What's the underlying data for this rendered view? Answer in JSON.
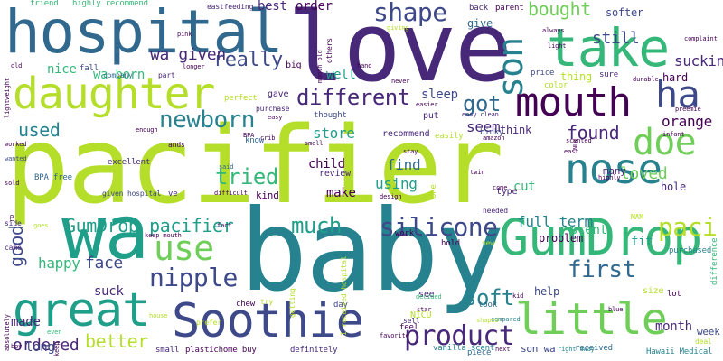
{
  "words": [
    {
      "text": "pacifier",
      "color": "#b5de2b"
    },
    {
      "text": "baby",
      "color": "#26828e"
    },
    {
      "text": "love",
      "color": "#482878"
    },
    {
      "text": "wa",
      "color": "#1f9e89"
    },
    {
      "text": "hospital",
      "color": "#31688e"
    },
    {
      "text": "take",
      "color": "#35b779"
    },
    {
      "text": "daughter",
      "color": "#b5de2b"
    },
    {
      "text": "GumDrop",
      "color": "#35b779"
    },
    {
      "text": "Soothie",
      "color": "#3e4989"
    },
    {
      "text": "little",
      "color": "#6ece58"
    },
    {
      "text": "great",
      "color": "#1f9e89"
    },
    {
      "text": "mouth",
      "color": "#440154"
    },
    {
      "text": "nose",
      "color": "#26828e"
    },
    {
      "text": "doe",
      "color": "#6ece58"
    },
    {
      "text": "use",
      "color": "#6ece58"
    },
    {
      "text": "ha",
      "color": "#3e4989"
    },
    {
      "text": "son",
      "color": "#26828e"
    },
    {
      "text": "product",
      "color": "#482878"
    },
    {
      "text": "shape",
      "color": "#3e4989"
    },
    {
      "text": "silicone",
      "color": "#3e4989"
    },
    {
      "text": "nipple",
      "color": "#3e4989"
    },
    {
      "text": "newborn",
      "color": "#26828e"
    },
    {
      "text": "paci",
      "color": "#b5de2b"
    },
    {
      "text": "much",
      "color": "#1f9e89"
    },
    {
      "text": "first",
      "color": "#31688e"
    },
    {
      "text": "soft",
      "color": "#26828e"
    },
    {
      "text": "really",
      "color": "#3e4989"
    },
    {
      "text": "different",
      "color": "#482878"
    },
    {
      "text": "tried",
      "color": "#35b779"
    },
    {
      "text": "GumDrop pacifier",
      "color": "#1f9e89"
    },
    {
      "text": "bought",
      "color": "#6ece58"
    },
    {
      "text": "got",
      "color": "#31688e"
    },
    {
      "text": "used",
      "color": "#26828e"
    },
    {
      "text": "better",
      "color": "#b5de2b"
    },
    {
      "text": "ordered",
      "color": "#482878"
    },
    {
      "text": "good",
      "color": "#3e4989"
    },
    {
      "text": "face",
      "color": "#3e4989"
    },
    {
      "text": "wa given",
      "color": "#482878"
    },
    {
      "text": "still",
      "color": "#3e4989"
    },
    {
      "text": "loved",
      "color": "#6ece58"
    },
    {
      "text": "found",
      "color": "#482878"
    },
    {
      "text": "happy",
      "color": "#35b779"
    },
    {
      "text": "full term",
      "color": "#26828e"
    },
    {
      "text": "sucking",
      "color": "#482878"
    },
    {
      "text": "orange",
      "color": "#440154"
    },
    {
      "text": "month",
      "color": "#482878"
    },
    {
      "text": "suck",
      "color": "#482878"
    },
    {
      "text": "seem",
      "color": "#482878"
    },
    {
      "text": "store",
      "color": "#1f9e89"
    },
    {
      "text": "using",
      "color": "#1f9e89"
    },
    {
      "text": "find",
      "color": "#31688e"
    },
    {
      "text": "made",
      "color": "#482878"
    },
    {
      "text": "nice",
      "color": "#35b779"
    },
    {
      "text": "wa born",
      "color": "#35b779"
    },
    {
      "text": "sleep",
      "color": "#3e4989"
    },
    {
      "text": "scent",
      "color": "#35b779"
    },
    {
      "text": "cut",
      "color": "#35b779"
    },
    {
      "text": "problem",
      "color": "#440154"
    },
    {
      "text": "fit",
      "color": "#1f9e89"
    },
    {
      "text": "help",
      "color": "#3e4989"
    },
    {
      "text": "long",
      "color": "#3e4989"
    },
    {
      "text": "make",
      "color": "#440154"
    },
    {
      "text": "child",
      "color": "#440154"
    },
    {
      "text": "well",
      "color": "#1f9e89"
    },
    {
      "text": "best",
      "color": "#482878"
    },
    {
      "text": "order",
      "color": "#440154"
    },
    {
      "text": "softer",
      "color": "#3e4989"
    },
    {
      "text": "hard",
      "color": "#440154"
    },
    {
      "text": "hole",
      "color": "#482878"
    },
    {
      "text": "thing",
      "color": "#b5de2b"
    },
    {
      "text": "think",
      "color": "#482878"
    },
    {
      "text": "give",
      "color": "#31688e"
    },
    {
      "text": "gave",
      "color": "#482878"
    },
    {
      "text": "review",
      "color": "#482878"
    },
    {
      "text": "recommend",
      "color": "#482878"
    },
    {
      "text": "son wa",
      "color": "#3e4989"
    },
    {
      "text": "week",
      "color": "#3e4989"
    },
    {
      "text": "piece",
      "color": "#31688e"
    },
    {
      "text": "size",
      "color": "#b5de2b"
    },
    {
      "text": "NICU",
      "color": "#b5de2b"
    },
    {
      "text": "type",
      "color": "#482878"
    },
    {
      "text": "purchased",
      "color": "#26828e"
    },
    {
      "text": "kind",
      "color": "#440154"
    },
    {
      "text": "many",
      "color": "#482878"
    },
    {
      "text": "big",
      "color": "#440154"
    },
    {
      "text": "put",
      "color": "#482878"
    },
    {
      "text": "see",
      "color": "#482878"
    },
    {
      "text": "chew",
      "color": "#440154"
    },
    {
      "text": "Hawaii Medical",
      "color": "#26828e"
    },
    {
      "text": "received",
      "color": "#31688e"
    },
    {
      "text": "plastichome buy",
      "color": "#440154"
    },
    {
      "text": "vanilla scent",
      "color": "#26828e"
    },
    {
      "text": "definitely",
      "color": "#482878"
    },
    {
      "text": "small",
      "color": "#482878"
    },
    {
      "text": "came",
      "color": "#482878"
    },
    {
      "text": "side",
      "color": "#482878"
    },
    {
      "text": "friend",
      "color": "#35b779"
    },
    {
      "text": "highly recommend",
      "color": "#35b779"
    },
    {
      "text": "eastfeeding",
      "color": "#482878"
    },
    {
      "text": "back",
      "color": "#482878"
    },
    {
      "text": "parent",
      "color": "#440154"
    },
    {
      "text": "took",
      "color": "#31688e"
    },
    {
      "text": "work",
      "color": "#440154"
    },
    {
      "text": "hold",
      "color": "#440154"
    },
    {
      "text": "binky",
      "color": "#3e4989"
    },
    {
      "text": "lot",
      "color": "#440154"
    },
    {
      "text": "know",
      "color": "#31688e"
    },
    {
      "text": "thought",
      "color": "#3e4989"
    },
    {
      "text": "price",
      "color": "#3e4989"
    },
    {
      "text": "color",
      "color": "#b5de2b"
    },
    {
      "text": "easily",
      "color": "#b5de2b"
    },
    {
      "text": "excellent",
      "color": "#482878"
    },
    {
      "text": "perfect",
      "color": "#b5de2b"
    },
    {
      "text": "given hospital",
      "color": "#3e4989"
    },
    {
      "text": "BPA free",
      "color": "#31688e"
    },
    {
      "text": "purchase",
      "color": "#482878"
    },
    {
      "text": "feel",
      "color": "#440154"
    },
    {
      "text": "deal",
      "color": "#b5de2b"
    },
    {
      "text": "needed",
      "color": "#482878"
    },
    {
      "text": "sell",
      "color": "#482878"
    },
    {
      "text": "company",
      "color": "#31688e"
    },
    {
      "text": "sure",
      "color": "#482878"
    },
    {
      "text": "fall",
      "color": "#3e4989"
    },
    {
      "text": "part",
      "color": "#482878"
    },
    {
      "text": "easy clean",
      "color": "#482878"
    },
    {
      "text": "difference",
      "color": "#35b779"
    },
    {
      "text": "MAM",
      "color": "#b5de2b"
    },
    {
      "text": "prefer",
      "color": "#b5de2b"
    },
    {
      "text": "house",
      "color": "#b5de2b"
    },
    {
      "text": "day",
      "color": "#3e4989"
    },
    {
      "text": "compared",
      "color": "#26828e"
    },
    {
      "text": "right away",
      "color": "#26828e"
    },
    {
      "text": "new",
      "color": "#b5de2b"
    },
    {
      "text": "said",
      "color": "#31688e"
    },
    {
      "text": "one",
      "color": "#b5de2b"
    },
    {
      "text": "ve",
      "color": "#482878"
    },
    {
      "text": "try",
      "color": "#b5de2b"
    },
    {
      "text": "wanted",
      "color": "#3e4989"
    },
    {
      "text": "decided",
      "color": "#35b779"
    },
    {
      "text": "even",
      "color": "#35b779"
    },
    {
      "text": "pink",
      "color": "#440154"
    },
    {
      "text": "longer",
      "color": "#440154"
    },
    {
      "text": "stay",
      "color": "#440154"
    },
    {
      "text": "always",
      "color": "#440154"
    },
    {
      "text": "amazon",
      "color": "#440154"
    },
    {
      "text": "east",
      "color": "#440154"
    },
    {
      "text": "infant",
      "color": "#440154"
    },
    {
      "text": "complaint",
      "color": "#440154"
    },
    {
      "text": "preemie",
      "color": "#440154"
    },
    {
      "text": "durable",
      "color": "#440154"
    },
    {
      "text": "light",
      "color": "#440154"
    },
    {
      "text": "hand",
      "color": "#440154"
    },
    {
      "text": "never",
      "color": "#440154"
    },
    {
      "text": "others",
      "color": "#440154"
    },
    {
      "text": "giving",
      "color": "#b5de2b"
    },
    {
      "text": "month old",
      "color": "#440154"
    },
    {
      "text": "easier",
      "color": "#440154"
    },
    {
      "text": "easy",
      "color": "#440154"
    },
    {
      "text": "enough",
      "color": "#440154"
    },
    {
      "text": "ands",
      "color": "#440154"
    },
    {
      "text": "BPA",
      "color": "#440154"
    },
    {
      "text": "crib",
      "color": "#440154"
    },
    {
      "text": "scented",
      "color": "#440154"
    },
    {
      "text": "highly",
      "color": "#440154"
    },
    {
      "text": "twin",
      "color": "#440154"
    },
    {
      "text": "come",
      "color": "#440154"
    },
    {
      "text": "difficult",
      "color": "#440154"
    },
    {
      "text": "design",
      "color": "#440154"
    },
    {
      "text": "keep mouth",
      "color": "#440154"
    },
    {
      "text": "fact",
      "color": "#440154"
    },
    {
      "text": "getting",
      "color": "#b5de2b"
    },
    {
      "text": "I received hospital",
      "color": "#b5de2b"
    },
    {
      "text": "shaped",
      "color": "#b5de2b"
    },
    {
      "text": "kid",
      "color": "#440154"
    },
    {
      "text": "favorite",
      "color": "#440154"
    },
    {
      "text": "boy",
      "color": "#440154"
    },
    {
      "text": "keep",
      "color": "#440154"
    },
    {
      "text": "next",
      "color": "#440154"
    },
    {
      "text": "blue",
      "color": "#440154"
    },
    {
      "text": "absolutely",
      "color": "#440154"
    },
    {
      "text": "smell",
      "color": "#440154"
    },
    {
      "text": "lightweight",
      "color": "#440154"
    },
    {
      "text": "worked",
      "color": "#440154"
    },
    {
      "text": "sold",
      "color": "#440154"
    },
    {
      "text": "goes",
      "color": "#b5de2b"
    },
    {
      "text": "ro",
      "color": "#440154"
    },
    {
      "text": "star",
      "color": "#440154"
    },
    {
      "text": "NUK",
      "color": "#440154"
    },
    {
      "text": "old",
      "color": "#440154"
    }
  ]
}
